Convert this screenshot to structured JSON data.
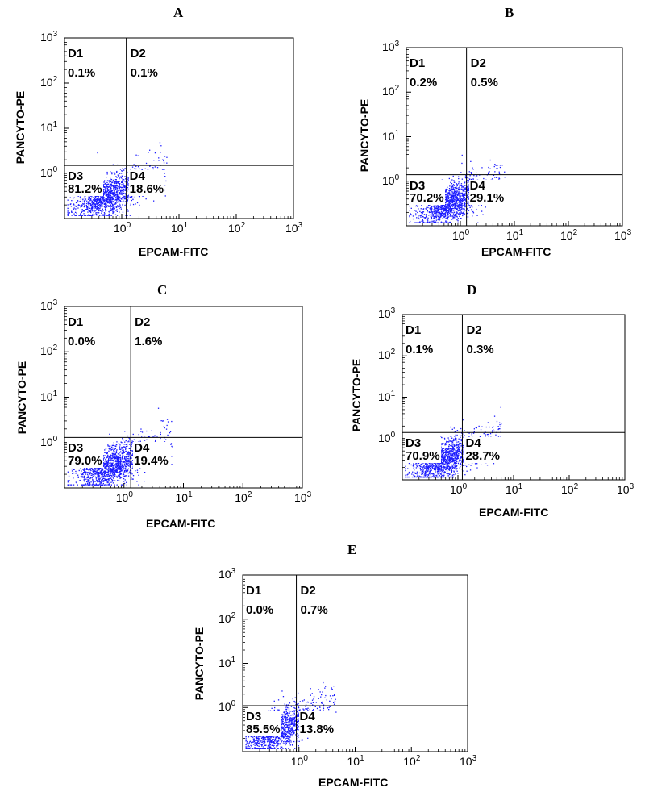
{
  "chart_data": [
    {
      "type": "scatter",
      "panel_label": "A",
      "xlabel": "EPCAM-FITC",
      "ylabel": "PANCYTO-PE",
      "xscale": "log",
      "yscale": "log",
      "xlim": [
        0.1,
        1000
      ],
      "ylim": [
        0.1,
        1000
      ],
      "x_ticks": [
        "10",
        "10",
        "10",
        "10"
      ],
      "x_tick_exp": [
        "0",
        "1",
        "2",
        "3"
      ],
      "y_ticks": [
        "10",
        "10",
        "10",
        "10"
      ],
      "y_tick_exp": [
        "0",
        "1",
        "2",
        "3"
      ],
      "x_gate": 1.2,
      "y_gate": 1.5,
      "quadrants": [
        {
          "name": "D1",
          "percent": "0.1%"
        },
        {
          "name": "D2",
          "percent": "0.1%"
        },
        {
          "name": "D3",
          "percent": "81.2%"
        },
        {
          "name": "D4",
          "percent": "18.6%"
        }
      ],
      "point_color": "#1a1aff"
    },
    {
      "type": "scatter",
      "panel_label": "B",
      "xlabel": "EPCAM-FITC",
      "ylabel": "PANCYTO-PE",
      "xscale": "log",
      "yscale": "log",
      "xlim": [
        0.1,
        1000
      ],
      "ylim": [
        0.1,
        1000
      ],
      "x_ticks": [
        "10",
        "10",
        "10",
        "10"
      ],
      "x_tick_exp": [
        "0",
        "1",
        "2",
        "3"
      ],
      "y_ticks": [
        "10",
        "10",
        "10",
        "10"
      ],
      "y_tick_exp": [
        "0",
        "1",
        "2",
        "3"
      ],
      "x_gate": 1.3,
      "y_gate": 1.4,
      "quadrants": [
        {
          "name": "D1",
          "percent": "0.2%"
        },
        {
          "name": "D2",
          "percent": "0.5%"
        },
        {
          "name": "D3",
          "percent": "70.2%"
        },
        {
          "name": "D4",
          "percent": "29.1%"
        }
      ],
      "point_color": "#1a1aff"
    },
    {
      "type": "scatter",
      "panel_label": "C",
      "xlabel": "EPCAM-FITC",
      "ylabel": "PANCYTO-PE",
      "xscale": "log",
      "yscale": "log",
      "xlim": [
        0.1,
        1000
      ],
      "ylim": [
        0.1,
        1000
      ],
      "x_ticks": [
        "10",
        "10",
        "10",
        "10"
      ],
      "x_tick_exp": [
        "0",
        "1",
        "2",
        "3"
      ],
      "y_ticks": [
        "10",
        "10",
        "10",
        "10"
      ],
      "y_tick_exp": [
        "0",
        "1",
        "2",
        "3"
      ],
      "x_gate": 1.3,
      "y_gate": 1.3,
      "quadrants": [
        {
          "name": "D1",
          "percent": "0.0%"
        },
        {
          "name": "D2",
          "percent": "1.6%"
        },
        {
          "name": "D3",
          "percent": "79.0%"
        },
        {
          "name": "D4",
          "percent": "19.4%"
        }
      ],
      "point_color": "#1a1aff"
    },
    {
      "type": "scatter",
      "panel_label": "D",
      "xlabel": "EPCAM-FITC",
      "ylabel": "PANCYTO-PE",
      "xscale": "log",
      "yscale": "log",
      "xlim": [
        0.1,
        1000
      ],
      "ylim": [
        0.1,
        1000
      ],
      "x_ticks": [
        "10",
        "10",
        "10",
        "10"
      ],
      "x_tick_exp": [
        "0",
        "1",
        "2",
        "3"
      ],
      "y_ticks": [
        "10",
        "10",
        "10",
        "10"
      ],
      "y_tick_exp": [
        "0",
        "1",
        "2",
        "3"
      ],
      "x_gate": 1.2,
      "y_gate": 1.4,
      "quadrants": [
        {
          "name": "D1",
          "percent": "0.1%"
        },
        {
          "name": "D2",
          "percent": "0.3%"
        },
        {
          "name": "D3",
          "percent": "70.9%"
        },
        {
          "name": "D4",
          "percent": "28.7%"
        }
      ],
      "point_color": "#1a1aff"
    },
    {
      "type": "scatter",
      "panel_label": "E",
      "xlabel": "EPCAM-FITC",
      "ylabel": "PANCYTO-PE",
      "xscale": "log",
      "yscale": "log",
      "xlim": [
        0.1,
        1000
      ],
      "ylim": [
        0.1,
        1000
      ],
      "x_ticks": [
        "10",
        "10",
        "10",
        "10"
      ],
      "x_tick_exp": [
        "0",
        "1",
        "2",
        "3"
      ],
      "y_ticks": [
        "10",
        "10",
        "10",
        "10"
      ],
      "y_tick_exp": [
        "0",
        "1",
        "2",
        "3"
      ],
      "x_gate": 0.9,
      "y_gate": 1.1,
      "quadrants": [
        {
          "name": "D1",
          "percent": "0.0%"
        },
        {
          "name": "D2",
          "percent": "0.7%"
        },
        {
          "name": "D3",
          "percent": "85.5%"
        },
        {
          "name": "D4",
          "percent": "13.8%"
        }
      ],
      "point_color": "#1a1aff"
    }
  ]
}
